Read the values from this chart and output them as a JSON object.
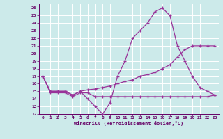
{
  "xlabel": "Windchill (Refroidissement éolien,°C)",
  "background_color": "#cceaea",
  "line_color": "#993399",
  "grid_color": "#ffffff",
  "xlim": [
    -0.5,
    23.5
  ],
  "ylim": [
    12,
    26.5
  ],
  "xticks": [
    0,
    1,
    2,
    3,
    4,
    5,
    6,
    7,
    8,
    9,
    10,
    11,
    12,
    13,
    14,
    15,
    16,
    17,
    18,
    19,
    20,
    21,
    22,
    23
  ],
  "yticks": [
    12,
    13,
    14,
    15,
    16,
    17,
    18,
    19,
    20,
    21,
    22,
    23,
    24,
    25,
    26
  ],
  "line1_x": [
    0,
    1,
    2,
    3,
    4,
    5,
    6,
    7,
    8,
    9,
    10,
    11,
    12,
    13,
    14,
    15,
    16,
    17,
    18,
    19,
    20,
    21,
    22,
    23
  ],
  "line1_y": [
    17,
    15,
    15,
    15,
    14.5,
    15,
    14,
    13,
    12,
    13.5,
    17,
    19,
    22,
    23,
    24,
    25.5,
    26,
    25,
    21,
    19,
    17,
    15.5,
    15,
    14.5
  ],
  "line2_x": [
    0,
    1,
    2,
    3,
    4,
    5,
    6,
    7,
    8,
    9,
    10,
    11,
    12,
    13,
    14,
    15,
    16,
    17,
    18,
    19,
    20,
    21,
    22,
    23
  ],
  "line2_y": [
    17,
    14.8,
    14.8,
    14.8,
    14.3,
    14.8,
    14.8,
    14.3,
    14.3,
    14.3,
    14.3,
    14.3,
    14.3,
    14.3,
    14.3,
    14.3,
    14.3,
    14.3,
    14.3,
    14.3,
    14.3,
    14.3,
    14.3,
    14.5
  ],
  "line3_x": [
    0,
    1,
    2,
    3,
    4,
    5,
    6,
    7,
    8,
    9,
    10,
    11,
    12,
    13,
    14,
    15,
    16,
    17,
    18,
    19,
    20,
    21,
    22,
    23
  ],
  "line3_y": [
    17,
    15,
    15,
    15,
    14.5,
    15,
    15.2,
    15.3,
    15.5,
    15.7,
    16,
    16.3,
    16.5,
    17,
    17.2,
    17.5,
    18,
    18.5,
    19.5,
    20.5,
    21,
    21,
    21,
    21
  ]
}
